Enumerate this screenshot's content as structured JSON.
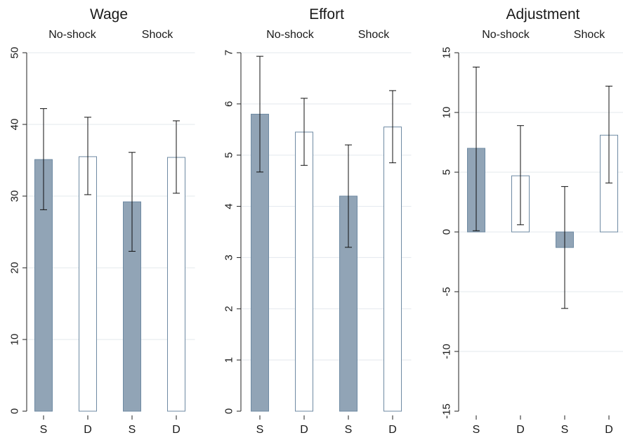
{
  "chart_data": [
    {
      "type": "bar",
      "title": "Wage",
      "groups": [
        "No-shock",
        "Shock"
      ],
      "categories": [
        "S",
        "D",
        "S",
        "D"
      ],
      "values": [
        35.1,
        35.5,
        29.2,
        35.4
      ],
      "error_low": [
        28.1,
        30.2,
        22.3,
        30.4
      ],
      "error_high": [
        42.2,
        41.0,
        36.1,
        40.5
      ],
      "ylim": [
        0,
        50
      ],
      "yticks": [
        "0",
        "10",
        "20",
        "30",
        "40",
        "50"
      ],
      "ytick_values": [
        0,
        10,
        20,
        30,
        40,
        50
      ]
    },
    {
      "type": "bar",
      "title": "Effort",
      "groups": [
        "No-shock",
        "Shock"
      ],
      "categories": [
        "S",
        "D",
        "S",
        "D"
      ],
      "values": [
        5.8,
        5.45,
        4.2,
        5.55
      ],
      "error_low": [
        4.67,
        4.8,
        3.2,
        4.85
      ],
      "error_high": [
        6.93,
        6.11,
        5.2,
        6.26
      ],
      "ylim": [
        0,
        7
      ],
      "yticks": [
        "0",
        "1",
        "2",
        "3",
        "4",
        "5",
        "6",
        "7"
      ],
      "ytick_values": [
        0,
        1,
        2,
        3,
        4,
        5,
        6,
        7
      ]
    },
    {
      "type": "bar",
      "title": "Adjustment",
      "groups": [
        "No-shock",
        "Shock"
      ],
      "categories": [
        "S",
        "D",
        "S",
        "D"
      ],
      "values": [
        7.0,
        4.7,
        -1.3,
        8.1
      ],
      "error_low": [
        0.1,
        0.6,
        -6.4,
        4.1
      ],
      "error_high": [
        13.8,
        8.9,
        3.8,
        12.2
      ],
      "ylim": [
        -15,
        15
      ],
      "yticks": [
        "-15",
        "-10",
        "-5",
        "0",
        "5",
        "10",
        "15"
      ],
      "ytick_values": [
        -15,
        -10,
        -5,
        0,
        5,
        10,
        15
      ]
    }
  ],
  "colors": {
    "shock_bar_fill": "#91a4b6",
    "bar_outline": "#6e8aa3",
    "open_bar_fill": "#ffffff",
    "grid": "#e3e8ee"
  }
}
